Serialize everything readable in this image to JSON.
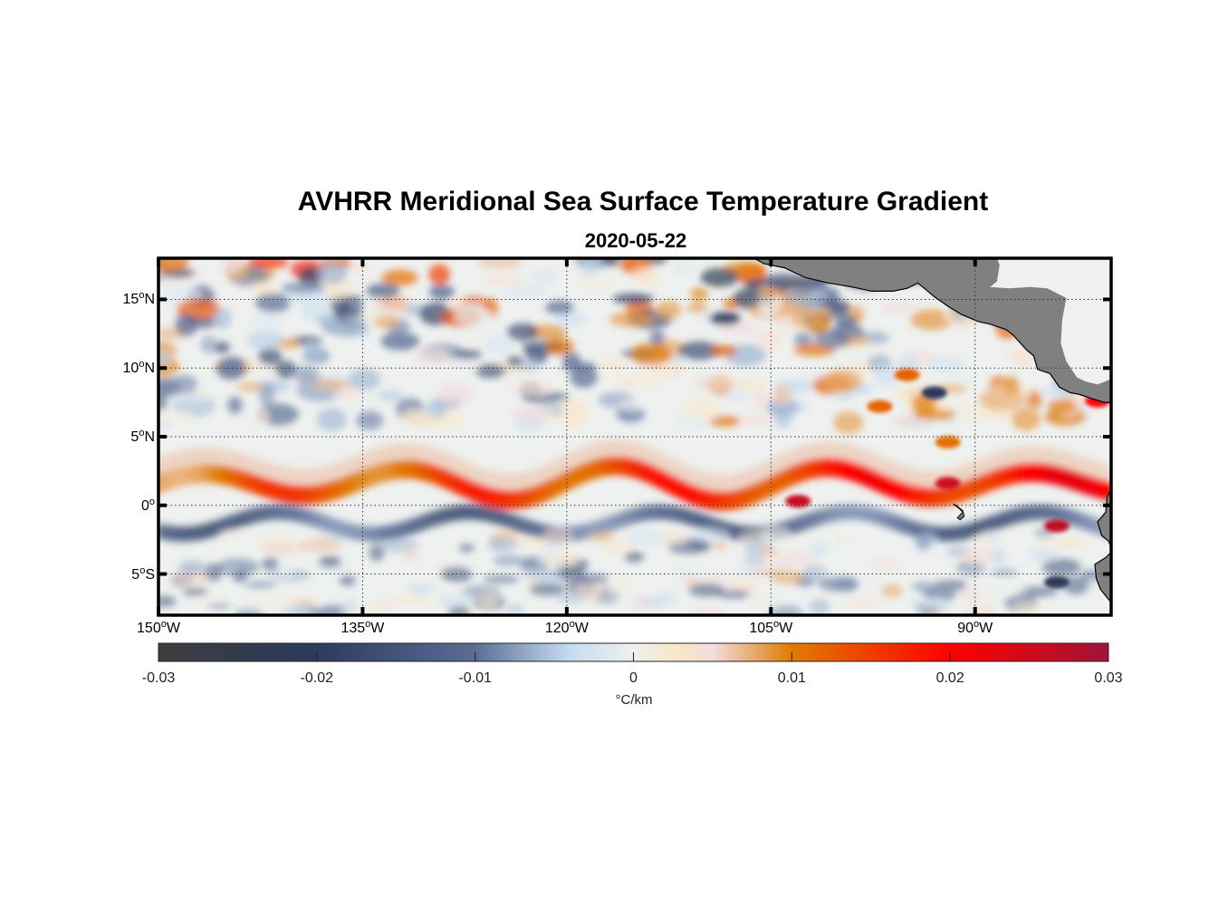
{
  "title": "AVHRR Meridional Sea Surface Temperature Gradient",
  "subtitle": "2020-05-22",
  "map": {
    "projection": "equirectangular",
    "lon_range": [
      -150,
      -80
    ],
    "lat_range": [
      -8,
      18
    ],
    "land_color": "#808080",
    "missing_color": "#ffffff",
    "lat_ticks": [
      {
        "value": 15,
        "label_num": "15",
        "deg": "o",
        "hemi": "N"
      },
      {
        "value": 10,
        "label_num": "10",
        "deg": "o",
        "hemi": "N"
      },
      {
        "value": 5,
        "label_num": "5",
        "deg": "o",
        "hemi": "N"
      },
      {
        "value": 0,
        "label_num": "0",
        "deg": "o",
        "hemi": ""
      },
      {
        "value": -5,
        "label_num": "5",
        "deg": "o",
        "hemi": "S"
      }
    ],
    "lon_ticks": [
      {
        "value": -150,
        "label_num": "150",
        "deg": "o",
        "hemi": "W"
      },
      {
        "value": -135,
        "label_num": "135",
        "deg": "o",
        "hemi": "W"
      },
      {
        "value": -120,
        "label_num": "120",
        "deg": "o",
        "hemi": "W"
      },
      {
        "value": -105,
        "label_num": "105",
        "deg": "o",
        "hemi": "W"
      },
      {
        "value": -90,
        "label_num": "90",
        "deg": "o",
        "hemi": "W"
      }
    ]
  },
  "colorbar": {
    "min": -0.03,
    "max": 0.03,
    "ticks": [
      "-0.03",
      "-0.02",
      "-0.01",
      "0",
      "0.01",
      "0.02",
      "0.03"
    ],
    "tick_values": [
      -0.03,
      -0.02,
      -0.01,
      0,
      0.01,
      0.02,
      0.03
    ],
    "unit": "°C/km",
    "stops": [
      {
        "v": -0.03,
        "color": "#3c3c3c"
      },
      {
        "v": -0.02,
        "color": "#2b3b5e"
      },
      {
        "v": -0.01,
        "color": "#5b6d95"
      },
      {
        "v": -0.004,
        "color": "#c6dcf1"
      },
      {
        "v": 0,
        "color": "#eef0ee"
      },
      {
        "v": 0.003,
        "color": "#fbe5c5"
      },
      {
        "v": 0.005,
        "color": "#f2dde0"
      },
      {
        "v": 0.01,
        "color": "#e07b00"
      },
      {
        "v": 0.02,
        "color": "#fe0000"
      },
      {
        "v": 0.03,
        "color": "#a01438"
      }
    ]
  }
}
